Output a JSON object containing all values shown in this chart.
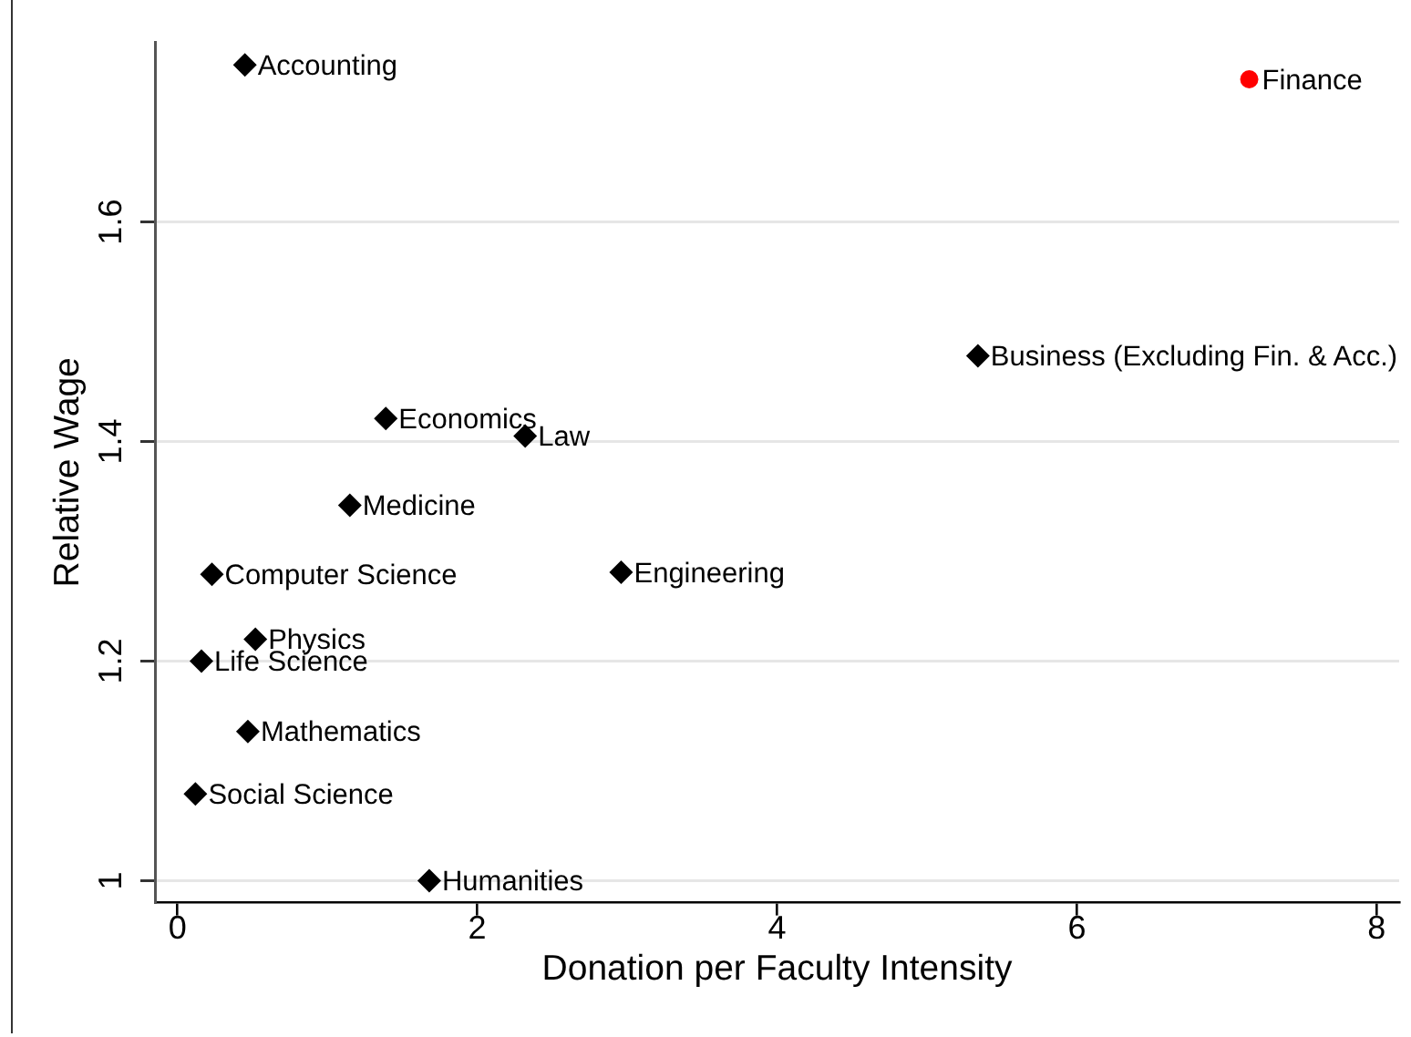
{
  "chart_data": {
    "type": "scatter",
    "xlabel": "Donation per Faculty Intensity",
    "ylabel": "Relative Wage",
    "xlim": [
      -0.15,
      8.15
    ],
    "ylim": [
      0.98,
      1.764
    ],
    "xticks": [
      0,
      2,
      4,
      6,
      8
    ],
    "yticks": [
      1,
      1.2,
      1.4,
      1.6
    ],
    "grid": "y",
    "series": [
      {
        "color": "#000000",
        "marker": "diamond",
        "x": [
          0.45,
          5.34,
          1.39,
          2.32,
          1.15,
          0.23,
          2.96,
          0.52,
          0.16,
          0.47,
          0.12,
          1.68
        ],
        "values": [
          1.743,
          1.478,
          1.421,
          1.405,
          1.342,
          1.279,
          1.281,
          1.22,
          1.2,
          1.136,
          1.079,
          1.0
        ]
      },
      {
        "color": "#ff0000",
        "marker": "circle",
        "x": [
          7.15
        ],
        "values": [
          1.73
        ]
      }
    ],
    "annotations": [
      {
        "text": "Accounting",
        "x": 0.45,
        "y": 1.743
      },
      {
        "text": "Finance",
        "x": 7.15,
        "y": 1.73
      },
      {
        "text": "Business (Excluding Fin. & Acc.)",
        "x": 5.34,
        "y": 1.478
      },
      {
        "text": "Economics",
        "x": 1.39,
        "y": 1.421
      },
      {
        "text": "Law",
        "x": 2.32,
        "y": 1.405
      },
      {
        "text": "Medicine",
        "x": 1.15,
        "y": 1.342
      },
      {
        "text": "Computer Science",
        "x": 0.23,
        "y": 1.279
      },
      {
        "text": "Engineering",
        "x": 2.96,
        "y": 1.281
      },
      {
        "text": "Physics",
        "x": 0.52,
        "y": 1.22
      },
      {
        "text": "Life Science",
        "x": 0.16,
        "y": 1.2
      },
      {
        "text": "Mathematics",
        "x": 0.47,
        "y": 1.136
      },
      {
        "text": "Social Science",
        "x": 0.12,
        "y": 1.079
      },
      {
        "text": "Humanities",
        "x": 1.68,
        "y": 1.0
      }
    ]
  }
}
